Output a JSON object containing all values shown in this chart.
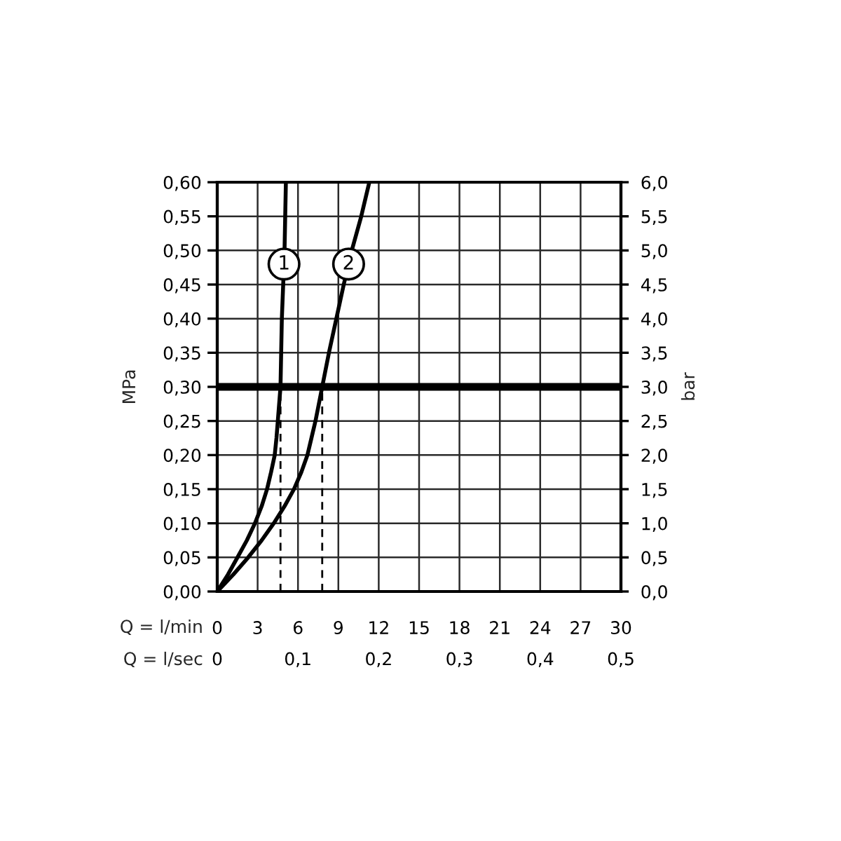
{
  "chart_data": {
    "type": "line",
    "xlabel": "Q = l/min",
    "ylabel": "MPa",
    "y2label": "bar",
    "x2label": "Q = l/sec",
    "series": [
      {
        "name": "1",
        "color": "#000000",
        "x": [
          0,
          0.8,
          1.5,
          2.2,
          2.8,
          3.3,
          3.7,
          4.0,
          4.27,
          4.4,
          4.5,
          4.7,
          4.75,
          4.8,
          4.9,
          5.0,
          5.05,
          5.1
        ],
        "values": [
          0,
          0.025,
          0.05,
          0.075,
          0.1,
          0.125,
          0.15,
          0.175,
          0.2,
          0.225,
          0.25,
          0.3,
          0.35,
          0.4,
          0.45,
          0.5,
          0.55,
          0.6
        ]
      },
      {
        "name": "2",
        "color": "#000000",
        "x": [
          0,
          1.2,
          2.3,
          3.3,
          4.2,
          5.0,
          5.7,
          6.25,
          6.7,
          7.0,
          7.3,
          7.8,
          8.3,
          8.85,
          9.4,
          10.0,
          10.7,
          11.3
        ],
        "values": [
          0,
          0.025,
          0.05,
          0.075,
          0.1,
          0.125,
          0.15,
          0.175,
          0.2,
          0.225,
          0.25,
          0.3,
          0.35,
          0.4,
          0.45,
          0.5,
          0.55,
          0.6
        ]
      },
      {
        "color": "#000000",
        "line_style": "dashed",
        "x": [
          4.7,
          4.7
        ],
        "values": [
          0,
          0.3
        ]
      },
      {
        "color": "#000000",
        "line_style": "dashed",
        "x": [
          7.8,
          7.8
        ],
        "values": [
          0,
          0.3
        ]
      }
    ],
    "xlim": [
      0,
      30
    ],
    "xticks": [
      0,
      3,
      6,
      9,
      12,
      15,
      18,
      21,
      24,
      27,
      30
    ],
    "x2lim": [
      0,
      0.5
    ],
    "x2ticks": [
      0,
      {
        "value": 0.1,
        "label": "0,1"
      },
      {
        "value": 0.2,
        "label": "0,2"
      },
      {
        "value": 0.3,
        "label": "0,3"
      },
      {
        "value": 0.4,
        "label": "0,4"
      },
      {
        "value": 0.5,
        "label": "0,5"
      }
    ],
    "ylim": [
      0,
      0.6
    ],
    "yticks": [
      {
        "value": 0,
        "label": "0,00"
      },
      {
        "value": 0.05,
        "label": "0,05"
      },
      {
        "value": 0.1,
        "label": "0,10"
      },
      {
        "value": 0.15,
        "label": "0,15"
      },
      {
        "value": 0.2,
        "label": "0,20"
      },
      {
        "value": 0.25,
        "label": "0,25"
      },
      {
        "value": 0.3,
        "label": "0,30"
      },
      {
        "value": 0.35,
        "label": "0,35"
      },
      {
        "value": 0.4,
        "label": "0,40"
      },
      {
        "value": 0.45,
        "label": "0,45"
      },
      {
        "value": 0.5,
        "label": "0,50"
      },
      {
        "value": 0.55,
        "label": "0,55"
      },
      {
        "value": 0.6,
        "label": "0,60"
      }
    ],
    "y2lim": [
      0,
      6
    ],
    "y2ticks": [
      {
        "value": 0,
        "label": "0,0"
      },
      {
        "value": 0.5,
        "label": "0,5"
      },
      {
        "value": 1,
        "label": "1,0"
      },
      {
        "value": 1.5,
        "label": "1,5"
      },
      {
        "value": 2,
        "label": "2,0"
      },
      {
        "value": 2.5,
        "label": "2,5"
      },
      {
        "value": 3,
        "label": "3,0"
      },
      {
        "value": 3.5,
        "label": "3,5"
      },
      {
        "value": 4,
        "label": "4,0"
      },
      {
        "value": 4.5,
        "label": "4,5"
      },
      {
        "value": 5,
        "label": "5,0"
      },
      {
        "value": 5.5,
        "label": "5,5"
      },
      {
        "value": 6,
        "label": "6,0"
      }
    ],
    "ref_lines": [
      {
        "axis": "y",
        "value": 0.3
      }
    ],
    "grid": true
  }
}
